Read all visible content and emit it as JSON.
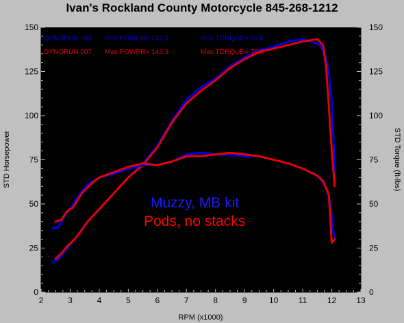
{
  "title": "Ivan's Rockland County Motorcycle  845-268-1212",
  "chart_data": {
    "type": "line",
    "xlabel": "RPM (x1000)",
    "ylabel": "STD Horsepower",
    "ylabel_right": "STD Torque (ft-lbs)",
    "xlim": [
      2,
      13
    ],
    "ylim": [
      0,
      150
    ],
    "xticks": [
      "2",
      "3",
      "4",
      "5",
      "6",
      "7",
      "8",
      "9",
      "10",
      "11",
      "12",
      "13"
    ],
    "yticks": [
      "0",
      "25",
      "50",
      "75",
      "100",
      "125",
      "150"
    ],
    "yticks_right": [
      "0",
      "25",
      "50",
      "75",
      "100",
      "125",
      "150"
    ],
    "grid": false,
    "legend": [
      {
        "run": "DYNORUN.003",
        "power_label": "Max POWER= 143.3",
        "torque_label": "Max TORQUE= 79.0",
        "color": "#0000e6"
      },
      {
        "run": "DYNORUN.007",
        "power_label": "Max POWER= 143.3",
        "torque_label": "Max TORQUE= 79.0",
        "color": "#e60000"
      }
    ],
    "annotations": [
      {
        "text": "Muzzy, MB kit",
        "color": "#1a1aff"
      },
      {
        "text": "Pods, no stacks",
        "color": "#ff0000"
      }
    ],
    "series": [
      {
        "run": "DYNORUN.003",
        "measure": "power",
        "color": "#0000e6",
        "x": [
          2.4,
          2.6,
          2.8,
          3.0,
          3.2,
          3.5,
          4.0,
          4.5,
          5.0,
          5.5,
          6.0,
          6.5,
          7.0,
          7.5,
          8.0,
          8.5,
          9.0,
          9.5,
          10.0,
          10.5,
          11.0,
          11.3,
          11.6,
          11.8,
          11.9,
          12.0,
          12.05,
          12.1
        ],
        "y": [
          17,
          19,
          23,
          27,
          31,
          38,
          47,
          56,
          65,
          73,
          83,
          97,
          109,
          116,
          121,
          128,
          133,
          137,
          139,
          142,
          143.3,
          142,
          140,
          133,
          124,
          108,
          90,
          68
        ]
      },
      {
        "run": "DYNORUN.007",
        "measure": "power",
        "color": "#e60000",
        "x": [
          2.5,
          2.7,
          2.9,
          3.1,
          3.3,
          3.6,
          4.0,
          4.5,
          5.0,
          5.5,
          6.0,
          6.5,
          7.0,
          7.5,
          8.0,
          8.5,
          9.0,
          9.5,
          10.0,
          10.5,
          11.0,
          11.5,
          11.7,
          11.8,
          11.9,
          12.0,
          12.1
        ],
        "y": [
          19,
          22,
          26,
          29,
          33,
          40,
          47,
          56,
          65,
          72,
          82,
          96,
          107,
          114,
          120,
          127,
          132,
          136,
          138,
          140,
          142,
          143.3,
          140,
          128,
          105,
          80,
          60
        ]
      },
      {
        "run": "DYNORUN.003",
        "measure": "torque",
        "color": "#0000e6",
        "x": [
          2.4,
          2.6,
          2.8,
          3.0,
          3.3,
          3.6,
          4.0,
          4.5,
          5.0,
          5.5,
          6.0,
          6.5,
          7.0,
          7.5,
          8.0,
          8.5,
          9.0,
          9.5,
          10.0,
          10.5,
          11.0,
          11.5,
          11.8,
          11.95,
          12.05,
          12.1
        ],
        "y": [
          36,
          37,
          43,
          47,
          55,
          61,
          65,
          67,
          70,
          72,
          72,
          74,
          78,
          79,
          78,
          78,
          77,
          77,
          75,
          73,
          70,
          66,
          60,
          50,
          35,
          30
        ]
      },
      {
        "run": "DYNORUN.007",
        "measure": "torque",
        "color": "#e60000",
        "x": [
          2.5,
          2.7,
          2.9,
          3.1,
          3.4,
          3.7,
          4.0,
          4.5,
          5.0,
          5.5,
          6.0,
          6.5,
          7.0,
          7.5,
          8.0,
          8.5,
          9.0,
          9.5,
          10.0,
          10.5,
          11.0,
          11.5,
          11.7,
          11.9,
          12.0,
          12.1
        ],
        "y": [
          40,
          41,
          46,
          48,
          56,
          61,
          65,
          68,
          71,
          73,
          72,
          74,
          77,
          77,
          78,
          79,
          78,
          77,
          75,
          73,
          70,
          66,
          63,
          55,
          28,
          30
        ]
      }
    ]
  }
}
